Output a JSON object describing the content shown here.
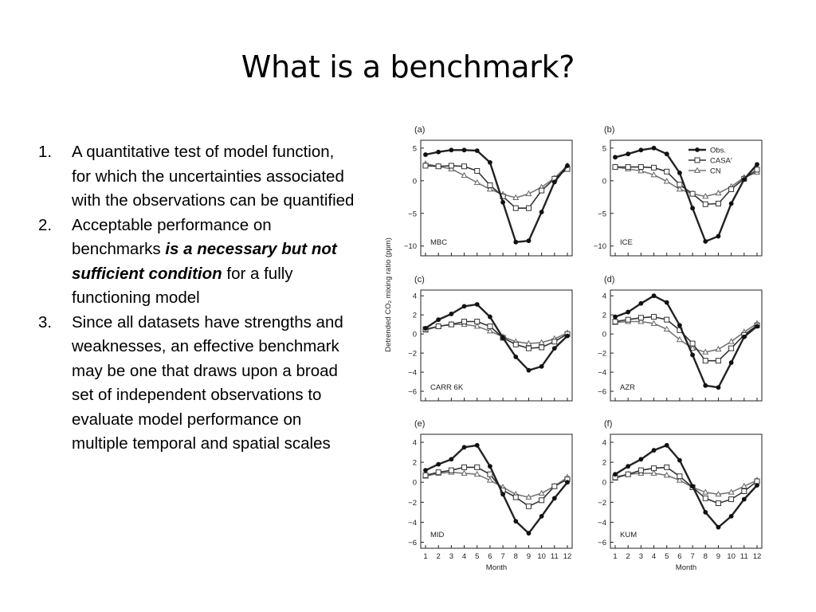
{
  "slide": {
    "title": "What is a benchmark?",
    "bullets": [
      {
        "number": "1.",
        "text": "A quantitative test of model function, for which the uncertainties associated with the observations can be quantified"
      },
      {
        "number": "2.",
        "text_before": "Acceptable performance on benchmarks ",
        "emphasis": "is a necessary but not sufficient condition",
        "text_after": " for a fully functioning model"
      },
      {
        "number": "3.",
        "text": "Since all datasets have strengths and weaknesses, an effective benchmark may be one that draws upon a broad set of independent observations to evaluate model performance on multiple temporal and spatial scales"
      }
    ]
  },
  "figure": {
    "ylabel": "Detrended CO₂ mixing ratio (ppm)",
    "xlabel": "Month",
    "legend": [
      "Obs.",
      "CASA′",
      "CN"
    ]
  },
  "chart_data": [
    {
      "type": "line",
      "panel": "(a)",
      "site": "MBC",
      "x": [
        1,
        2,
        3,
        4,
        5,
        6,
        7,
        8,
        9,
        10,
        11,
        12
      ],
      "ylim": [
        -11.5,
        6.2
      ],
      "yticks": [
        5,
        0,
        -5,
        -10
      ],
      "series": [
        {
          "name": "Obs.",
          "values": [
            4.0,
            4.4,
            4.7,
            4.7,
            4.6,
            2.8,
            -3.3,
            -9.4,
            -9.2,
            -4.8,
            -0.2,
            2.3
          ]
        },
        {
          "name": "CASA′",
          "values": [
            2.3,
            2.2,
            2.3,
            2.2,
            1.5,
            -0.7,
            -2.4,
            -4.2,
            -4.2,
            -1.5,
            0.3,
            1.8
          ]
        },
        {
          "name": "CN",
          "values": [
            2.6,
            2.2,
            1.8,
            0.8,
            -0.3,
            -1.3,
            -2.1,
            -2.6,
            -2.0,
            -1.0,
            0.4,
            2.3
          ]
        }
      ]
    },
    {
      "type": "line",
      "panel": "(b)",
      "site": "ICE",
      "x": [
        1,
        2,
        3,
        4,
        5,
        6,
        7,
        8,
        9,
        10,
        11,
        12
      ],
      "ylim": [
        -11.5,
        6.2
      ],
      "yticks": [
        5,
        0,
        -5,
        -10
      ],
      "legend_position": "top-right",
      "series": [
        {
          "name": "Obs.",
          "values": [
            3.6,
            4.1,
            4.7,
            5.0,
            4.1,
            1.2,
            -4.2,
            -9.3,
            -8.5,
            -3.5,
            0.2,
            2.5
          ]
        },
        {
          "name": "CASA′",
          "values": [
            2.1,
            2.1,
            2.1,
            2.0,
            1.4,
            -0.6,
            -2.0,
            -3.6,
            -3.5,
            -1.3,
            0.3,
            1.7
          ]
        },
        {
          "name": "CN",
          "values": [
            2.1,
            1.8,
            1.5,
            0.9,
            -0.1,
            -1.3,
            -2.0,
            -2.4,
            -1.9,
            -0.9,
            0.5,
            1.3
          ]
        }
      ]
    },
    {
      "type": "line",
      "panel": "(c)",
      "site": "CARR 6K",
      "x": [
        1,
        2,
        3,
        4,
        5,
        6,
        7,
        8,
        9,
        10,
        11,
        12
      ],
      "ylim": [
        -7,
        4.6
      ],
      "yticks": [
        4,
        2,
        0,
        -2,
        -4,
        -6
      ],
      "series": [
        {
          "name": "Obs.",
          "values": [
            0.6,
            1.5,
            2.1,
            2.9,
            3.1,
            1.8,
            -0.4,
            -2.4,
            -3.8,
            -3.4,
            -1.5,
            -0.2
          ]
        },
        {
          "name": "CASA′",
          "values": [
            0.5,
            0.8,
            1.0,
            1.3,
            1.3,
            0.8,
            -0.4,
            -1.1,
            -1.5,
            -1.4,
            -0.8,
            0.0
          ]
        },
        {
          "name": "CN",
          "values": [
            0.4,
            0.8,
            1.0,
            1.0,
            0.8,
            0.3,
            -0.3,
            -0.8,
            -1.0,
            -0.9,
            -0.5,
            0.1
          ]
        }
      ]
    },
    {
      "type": "line",
      "panel": "(d)",
      "site": "AZR",
      "x": [
        1,
        2,
        3,
        4,
        5,
        6,
        7,
        8,
        9,
        10,
        11,
        12
      ],
      "ylim": [
        -7,
        4.6
      ],
      "yticks": [
        4,
        2,
        0,
        -2,
        -4,
        -6
      ],
      "series": [
        {
          "name": "Obs.",
          "values": [
            1.8,
            2.3,
            3.2,
            4.0,
            3.3,
            0.9,
            -2.2,
            -5.4,
            -5.6,
            -3.0,
            -0.3,
            0.8
          ]
        },
        {
          "name": "CASA′",
          "values": [
            1.3,
            1.5,
            1.7,
            1.8,
            1.5,
            0.4,
            -1.0,
            -2.8,
            -2.8,
            -1.5,
            -0.1,
            0.9
          ]
        },
        {
          "name": "CN",
          "values": [
            1.2,
            1.3,
            1.3,
            1.1,
            0.5,
            -0.6,
            -1.5,
            -1.9,
            -1.6,
            -0.8,
            0.2,
            1.1
          ]
        }
      ]
    },
    {
      "type": "line",
      "panel": "(e)",
      "site": "MID",
      "x": [
        1,
        2,
        3,
        4,
        5,
        6,
        7,
        8,
        9,
        10,
        11,
        12
      ],
      "ylim": [
        -6.6,
        4.8
      ],
      "yticks": [
        4,
        2,
        0,
        -2,
        -4,
        -6
      ],
      "series": [
        {
          "name": "Obs.",
          "values": [
            1.2,
            1.8,
            2.3,
            3.5,
            3.7,
            1.6,
            -1.2,
            -3.9,
            -5.1,
            -3.4,
            -1.6,
            0.0
          ]
        },
        {
          "name": "CASA′",
          "values": [
            0.7,
            1.0,
            1.2,
            1.5,
            1.5,
            0.8,
            -0.8,
            -1.5,
            -2.4,
            -1.8,
            -0.4,
            0.3
          ]
        },
        {
          "name": "CN",
          "values": [
            0.6,
            0.9,
            1.0,
            0.9,
            0.8,
            0.2,
            -0.5,
            -1.2,
            -1.5,
            -1.1,
            -0.4,
            0.5
          ]
        }
      ]
    },
    {
      "type": "line",
      "panel": "(f)",
      "site": "KUM",
      "x": [
        1,
        2,
        3,
        4,
        5,
        6,
        7,
        8,
        9,
        10,
        11,
        12
      ],
      "ylim": [
        -6.6,
        4.8
      ],
      "yticks": [
        4,
        2,
        0,
        -2,
        -4,
        -6
      ],
      "series": [
        {
          "name": "Obs.",
          "values": [
            0.8,
            1.6,
            2.3,
            3.2,
            3.7,
            2.2,
            -0.4,
            -3.0,
            -4.5,
            -3.4,
            -1.7,
            -0.3
          ]
        },
        {
          "name": "CASA′",
          "values": [
            0.5,
            0.8,
            1.2,
            1.4,
            1.5,
            0.6,
            -0.5,
            -1.6,
            -2.1,
            -1.7,
            -0.9,
            0.1
          ]
        },
        {
          "name": "CN",
          "values": [
            0.4,
            0.8,
            0.9,
            0.9,
            0.7,
            0.2,
            -0.5,
            -1.0,
            -1.2,
            -1.0,
            -0.4,
            0.2
          ]
        }
      ]
    }
  ]
}
